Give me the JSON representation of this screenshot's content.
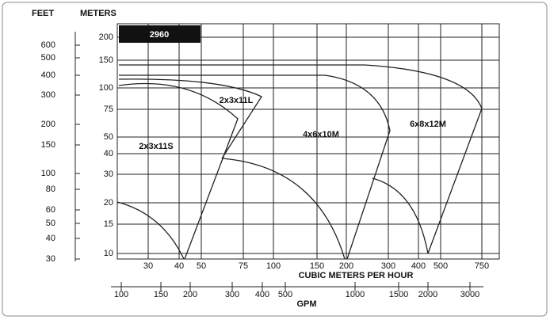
{
  "header": {
    "feet_label": "FEET",
    "meters_label": "METERS",
    "speed": "2960"
  },
  "feet_ticks": [
    "600",
    "500",
    "400",
    "300",
    "200",
    "150",
    "100",
    "80",
    "60",
    "50",
    "40",
    "30"
  ],
  "meter_ticks": [
    "200",
    "150",
    "100",
    "75",
    "50",
    "40",
    "30",
    "20",
    "15",
    "10"
  ],
  "flow_ticks": [
    "30",
    "40",
    "50",
    "75",
    "100",
    "150",
    "200",
    "300",
    "400",
    "500",
    "750"
  ],
  "flow_axis_label": "CUBIC METERS PER HOUR",
  "gpm_ticks": [
    "100",
    "150",
    "200",
    "300",
    "400",
    "500",
    "1000",
    "1500",
    "2000",
    "3000"
  ],
  "gpm_axis_label": "GPM",
  "regions": [
    "2x3x11S",
    "2x3x11L",
    "4x6x10M",
    "6x8x12M"
  ]
}
